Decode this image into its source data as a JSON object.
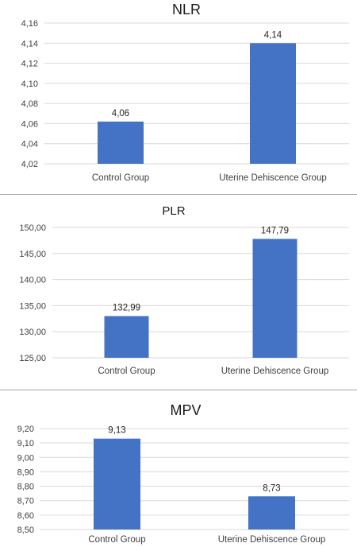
{
  "chart_data": [
    {
      "type": "bar",
      "title": "NLR",
      "categories": [
        "Control Group",
        "Uterine Dehiscence Group"
      ],
      "values": [
        4.062,
        4.14
      ],
      "value_labels": [
        "4,06",
        "4,14"
      ],
      "yticks": [
        "4,02",
        "4,04",
        "4,06",
        "4,08",
        "4,10",
        "4,12",
        "4,14",
        "4,16"
      ],
      "ylim": [
        4.02,
        4.16
      ],
      "grid": true,
      "legend": "none",
      "bar_color": "#4472c4"
    },
    {
      "type": "bar",
      "title": "PLR",
      "categories": [
        "Control Group",
        "Uterine Dehiscence Group"
      ],
      "values": [
        132.99,
        147.79
      ],
      "value_labels": [
        "132,99",
        "147,79"
      ],
      "yticks": [
        "125,00",
        "130,00",
        "135,00",
        "140,00",
        "145,00",
        "150,00"
      ],
      "ylim": [
        125,
        150
      ],
      "grid": true,
      "legend": "none",
      "bar_color": "#4472c4"
    },
    {
      "type": "bar",
      "title": "MPV",
      "categories": [
        "Control Group",
        "Uterine Dehiscence Group"
      ],
      "values": [
        9.13,
        8.73
      ],
      "value_labels": [
        "9,13",
        "8,73"
      ],
      "yticks": [
        "8,50",
        "8,60",
        "8,70",
        "8,80",
        "8,90",
        "9,00",
        "9,10",
        "9,20"
      ],
      "ylim": [
        8.5,
        9.2
      ],
      "grid": true,
      "legend": "none",
      "bar_color": "#4472c4"
    }
  ]
}
